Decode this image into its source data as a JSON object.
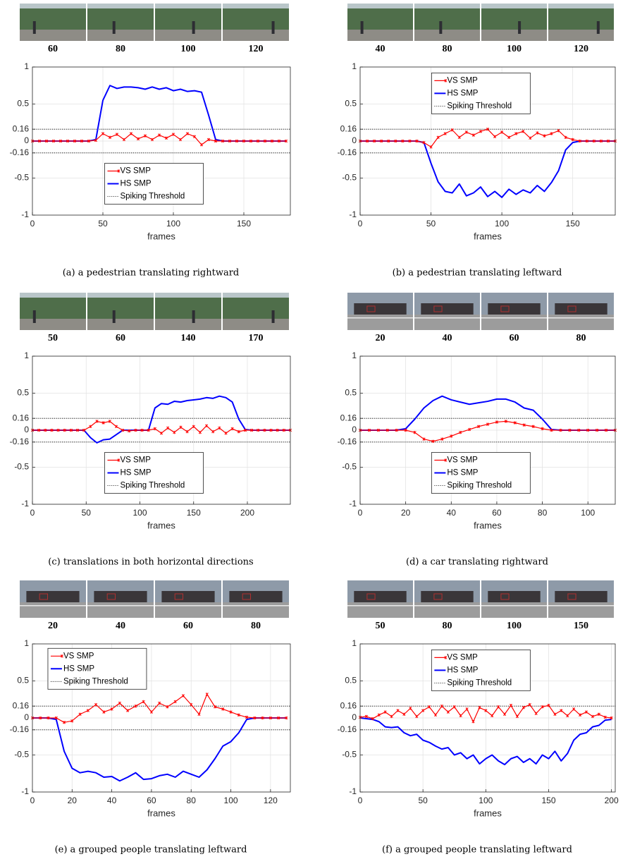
{
  "chart_data": [
    {
      "type": "line",
      "frames_shown": [
        60,
        80,
        100,
        120
      ],
      "x": [
        0,
        5,
        10,
        15,
        20,
        25,
        30,
        35,
        40,
        45,
        50,
        55,
        60,
        65,
        70,
        75,
        80,
        85,
        90,
        95,
        100,
        105,
        110,
        115,
        120,
        125,
        130,
        135,
        140,
        145,
        150,
        155,
        160,
        165,
        170,
        175,
        180
      ],
      "series": [
        {
          "name": "VS SMP",
          "color": "#ff0000",
          "marker": "x",
          "values": [
            0,
            0,
            0,
            0,
            0,
            0,
            0,
            0,
            0,
            0.01,
            0.1,
            0.05,
            0.09,
            0.02,
            0.1,
            0.03,
            0.07,
            0.02,
            0.08,
            0.04,
            0.09,
            0.02,
            0.1,
            0.06,
            -0.05,
            0.02,
            0,
            0,
            0,
            0,
            0,
            0,
            0,
            0,
            0,
            0,
            0
          ]
        },
        {
          "name": "HS SMP",
          "color": "#0000ff",
          "values": [
            0,
            0,
            0,
            0,
            0,
            0,
            0,
            0,
            0,
            0.02,
            0.55,
            0.75,
            0.71,
            0.73,
            0.73,
            0.72,
            0.7,
            0.73,
            0.7,
            0.72,
            0.68,
            0.7,
            0.67,
            0.68,
            0.66,
            0.35,
            0.02,
            0,
            0,
            0,
            0,
            0,
            0,
            0,
            0,
            0,
            0
          ]
        }
      ],
      "threshold": {
        "name": "Spiking Threshold",
        "color": "#000000",
        "values": [
          0.16,
          -0.16
        ]
      },
      "xlabel": "frames",
      "caption": "(a) a pedestrian translating rightward",
      "xlim": [
        0,
        183
      ],
      "ylim": [
        -1,
        1
      ],
      "xticks": [
        0,
        50,
        100,
        150
      ],
      "yticks": [
        -1,
        -0.5,
        -0.16,
        0,
        0.16,
        0.5,
        1
      ],
      "grid": true,
      "legend": "lower center"
    },
    {
      "type": "line",
      "frames_shown": [
        40,
        80,
        100,
        120
      ],
      "x": [
        0,
        5,
        10,
        15,
        20,
        25,
        30,
        35,
        40,
        45,
        50,
        55,
        60,
        65,
        70,
        75,
        80,
        85,
        90,
        95,
        100,
        105,
        110,
        115,
        120,
        125,
        130,
        135,
        140,
        145,
        150,
        155,
        160,
        165,
        170,
        175,
        180
      ],
      "series": [
        {
          "name": "VS SMP",
          "color": "#ff0000",
          "marker": "x",
          "values": [
            0,
            0,
            0,
            0,
            0,
            0,
            0,
            0,
            0,
            -0.02,
            -0.08,
            0.05,
            0.1,
            0.15,
            0.05,
            0.12,
            0.08,
            0.13,
            0.16,
            0.06,
            0.12,
            0.05,
            0.1,
            0.13,
            0.04,
            0.11,
            0.07,
            0.1,
            0.14,
            0.05,
            0.02,
            0,
            0,
            0,
            0,
            0,
            0
          ]
        },
        {
          "name": "HS SMP",
          "color": "#0000ff",
          "values": [
            0,
            0,
            0,
            0,
            0,
            0,
            0,
            0,
            0,
            -0.02,
            -0.3,
            -0.55,
            -0.68,
            -0.7,
            -0.58,
            -0.74,
            -0.7,
            -0.62,
            -0.75,
            -0.68,
            -0.76,
            -0.65,
            -0.72,
            -0.66,
            -0.7,
            -0.6,
            -0.68,
            -0.56,
            -0.4,
            -0.12,
            -0.02,
            0,
            0,
            0,
            0,
            0,
            0
          ]
        }
      ],
      "threshold": {
        "name": "Spiking Threshold",
        "color": "#000000",
        "values": [
          0.16,
          -0.16
        ]
      },
      "xlabel": "frames",
      "caption": "(b) a pedestrian translating leftward",
      "xlim": [
        0,
        180
      ],
      "ylim": [
        -1,
        1
      ],
      "xticks": [
        0,
        50,
        100,
        150
      ],
      "yticks": [
        -1,
        -0.5,
        -0.16,
        0,
        0.16,
        0.5,
        1
      ],
      "grid": true,
      "legend": "upper center"
    },
    {
      "type": "line",
      "frames_shown": [
        50,
        60,
        140,
        170
      ],
      "x": [
        0,
        6,
        12,
        18,
        24,
        30,
        36,
        42,
        48,
        54,
        60,
        66,
        72,
        78,
        84,
        90,
        96,
        102,
        108,
        114,
        120,
        126,
        132,
        138,
        144,
        150,
        156,
        162,
        168,
        174,
        180,
        186,
        192,
        198,
        204,
        210,
        216,
        222,
        228,
        234,
        240
      ],
      "series": [
        {
          "name": "VS SMP",
          "color": "#ff0000",
          "marker": "x",
          "values": [
            0,
            0,
            0,
            0,
            0,
            0,
            0,
            0,
            0,
            0.05,
            0.12,
            0.1,
            0.12,
            0.05,
            0,
            -0.01,
            0,
            0,
            0,
            0.02,
            -0.04,
            0.03,
            -0.03,
            0.04,
            -0.02,
            0.05,
            -0.03,
            0.06,
            -0.02,
            0.03,
            -0.04,
            0.02,
            -0.02,
            0,
            0,
            0,
            0,
            0,
            0,
            0,
            0
          ]
        },
        {
          "name": "HS SMP",
          "color": "#0000ff",
          "values": [
            0,
            0,
            0,
            0,
            0,
            0,
            0,
            0,
            0,
            -0.1,
            -0.17,
            -0.13,
            -0.12,
            -0.06,
            0,
            0,
            0,
            0,
            0,
            0.3,
            0.36,
            0.35,
            0.39,
            0.38,
            0.4,
            0.41,
            0.42,
            0.44,
            0.43,
            0.46,
            0.44,
            0.38,
            0.15,
            0.01,
            0,
            0,
            0,
            0,
            0,
            0,
            0
          ]
        }
      ],
      "threshold": {
        "name": "Spiking Threshold",
        "color": "#000000",
        "values": [
          0.16,
          -0.16
        ]
      },
      "xlabel": "frames",
      "caption": "(c) translations in both horizontal directions",
      "xlim": [
        0,
        240
      ],
      "ylim": [
        -1,
        1
      ],
      "xticks": [
        0,
        50,
        100,
        150,
        200
      ],
      "yticks": [
        -1,
        -0.5,
        -0.16,
        0,
        0.16,
        0.5,
        1
      ],
      "grid": true,
      "legend": "lower center"
    },
    {
      "type": "line",
      "frames_shown": [
        20,
        40,
        60,
        80
      ],
      "x": [
        0,
        4,
        8,
        12,
        16,
        20,
        24,
        28,
        32,
        36,
        40,
        44,
        48,
        52,
        56,
        60,
        64,
        68,
        72,
        76,
        80,
        84,
        88,
        92,
        96,
        100,
        104,
        108,
        112
      ],
      "series": [
        {
          "name": "VS SMP",
          "color": "#ff0000",
          "marker": "x",
          "values": [
            0,
            0,
            0,
            0,
            0,
            0,
            -0.03,
            -0.12,
            -0.15,
            -0.12,
            -0.08,
            -0.03,
            0.01,
            0.05,
            0.08,
            0.11,
            0.12,
            0.1,
            0.07,
            0.05,
            0.02,
            0,
            0,
            0,
            0,
            0,
            0,
            0,
            0
          ]
        },
        {
          "name": "HS SMP",
          "color": "#0000ff",
          "values": [
            0,
            0,
            0,
            0,
            0,
            0.02,
            0.15,
            0.3,
            0.4,
            0.46,
            0.41,
            0.38,
            0.35,
            0.37,
            0.39,
            0.42,
            0.42,
            0.38,
            0.3,
            0.27,
            0.15,
            0.01,
            0,
            0,
            0,
            0,
            0,
            0,
            0
          ]
        }
      ],
      "threshold": {
        "name": "Spiking Threshold",
        "color": "#000000",
        "values": [
          0.16,
          -0.16
        ]
      },
      "xlabel": "frames",
      "caption": "(d) a car translating rightward",
      "xlim": [
        0,
        112
      ],
      "ylim": [
        -1,
        1
      ],
      "xticks": [
        0,
        20,
        40,
        60,
        80,
        100
      ],
      "yticks": [
        -1,
        -0.5,
        -0.16,
        0,
        0.16,
        0.5,
        1
      ],
      "grid": true,
      "legend": "lower center"
    },
    {
      "type": "line",
      "frames_shown": [
        20,
        40,
        60,
        80
      ],
      "x": [
        0,
        4,
        8,
        12,
        16,
        20,
        24,
        28,
        32,
        36,
        40,
        44,
        48,
        52,
        56,
        60,
        64,
        68,
        72,
        76,
        80,
        84,
        88,
        92,
        96,
        100,
        104,
        108,
        112,
        116,
        120,
        124,
        128
      ],
      "series": [
        {
          "name": "VS SMP",
          "color": "#ff0000",
          "marker": "x",
          "values": [
            0,
            0,
            0,
            0,
            -0.06,
            -0.04,
            0.05,
            0.1,
            0.18,
            0.08,
            0.12,
            0.2,
            0.1,
            0.16,
            0.22,
            0.08,
            0.2,
            0.15,
            0.22,
            0.3,
            0.18,
            0.05,
            0.32,
            0.15,
            0.12,
            0.08,
            0.04,
            0.01,
            0,
            0,
            0,
            0,
            0
          ]
        },
        {
          "name": "HS SMP",
          "color": "#0000ff",
          "values": [
            0,
            0,
            0,
            -0.02,
            -0.45,
            -0.68,
            -0.74,
            -0.72,
            -0.74,
            -0.8,
            -0.79,
            -0.85,
            -0.8,
            -0.74,
            -0.83,
            -0.82,
            -0.78,
            -0.76,
            -0.8,
            -0.72,
            -0.76,
            -0.8,
            -0.7,
            -0.55,
            -0.38,
            -0.32,
            -0.2,
            -0.02,
            0,
            0,
            0,
            0,
            0
          ]
        }
      ],
      "threshold": {
        "name": "Spiking Threshold",
        "color": "#000000",
        "values": [
          0.16,
          -0.16
        ]
      },
      "xlabel": "frames",
      "caption": "(e) a grouped people translating leftward",
      "xlim": [
        0,
        130
      ],
      "ylim": [
        -1,
        1
      ],
      "xticks": [
        0,
        20,
        40,
        60,
        80,
        100,
        120
      ],
      "yticks": [
        -1,
        -0.5,
        -0.16,
        0,
        0.16,
        0.5,
        1
      ],
      "grid": true,
      "legend": "upper left"
    },
    {
      "type": "line",
      "frames_shown": [
        50,
        80,
        100,
        150
      ],
      "x": [
        0,
        5,
        10,
        15,
        20,
        25,
        30,
        35,
        40,
        45,
        50,
        55,
        60,
        65,
        70,
        75,
        80,
        85,
        90,
        95,
        100,
        105,
        110,
        115,
        120,
        125,
        130,
        135,
        140,
        145,
        150,
        155,
        160,
        165,
        170,
        175,
        180,
        185,
        190,
        195,
        200
      ],
      "series": [
        {
          "name": "VS SMP",
          "color": "#ff0000",
          "marker": "x",
          "values": [
            0.01,
            0.02,
            -0.01,
            0.04,
            0.08,
            0.02,
            0.1,
            0.05,
            0.13,
            0.02,
            0.1,
            0.15,
            0.04,
            0.16,
            0.08,
            0.15,
            0.03,
            0.12,
            -0.05,
            0.14,
            0.1,
            0.03,
            0.15,
            0.05,
            0.17,
            0.02,
            0.14,
            0.18,
            0.06,
            0.15,
            0.17,
            0.05,
            0.1,
            0.03,
            0.12,
            0.04,
            0.08,
            0.02,
            0.05,
            0.01,
            0
          ]
        },
        {
          "name": "HS SMP",
          "color": "#0000ff",
          "values": [
            0,
            -0.01,
            -0.02,
            -0.05,
            -0.12,
            -0.13,
            -0.12,
            -0.2,
            -0.24,
            -0.22,
            -0.3,
            -0.33,
            -0.38,
            -0.42,
            -0.4,
            -0.5,
            -0.47,
            -0.55,
            -0.5,
            -0.62,
            -0.55,
            -0.5,
            -0.58,
            -0.63,
            -0.55,
            -0.52,
            -0.6,
            -0.55,
            -0.62,
            -0.5,
            -0.55,
            -0.45,
            -0.58,
            -0.48,
            -0.3,
            -0.22,
            -0.2,
            -0.12,
            -0.1,
            -0.03,
            -0.02
          ]
        }
      ],
      "threshold": {
        "name": "Spiking Threshold",
        "color": "#000000",
        "values": [
          0.16,
          -0.16
        ]
      },
      "xlabel": "frames",
      "caption": "(f) a grouped people translating leftward",
      "xlim": [
        0,
        203
      ],
      "ylim": [
        -1,
        1
      ],
      "xticks": [
        0,
        50,
        100,
        150,
        200
      ],
      "yticks": [
        -1,
        -0.5,
        -0.16,
        0,
        0.16,
        0.5,
        1
      ],
      "grid": true,
      "legend": "upper center"
    }
  ]
}
